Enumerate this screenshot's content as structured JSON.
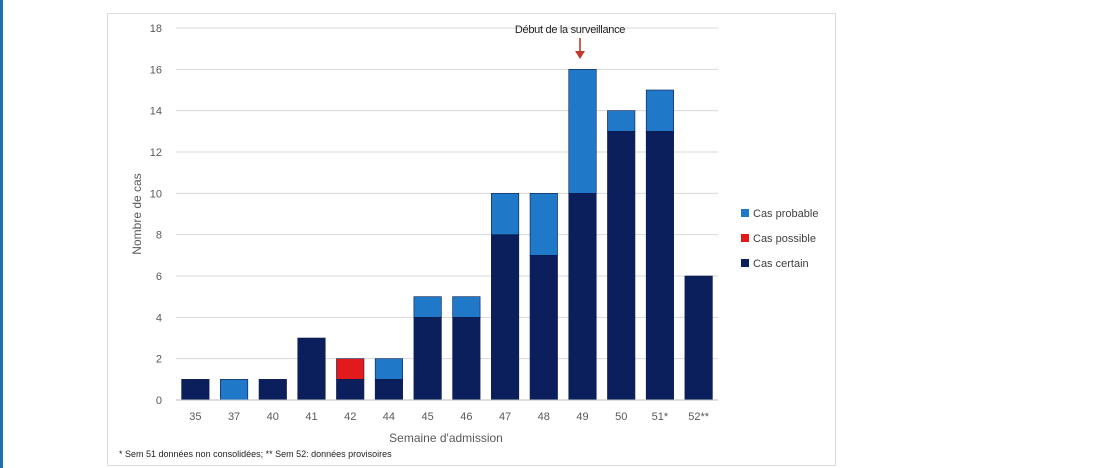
{
  "chart_data": {
    "type": "bar",
    "stacked": true,
    "categories": [
      "35",
      "37",
      "40",
      "41",
      "42",
      "44",
      "45",
      "46",
      "47",
      "48",
      "49",
      "50",
      "51*",
      "52**"
    ],
    "series": [
      {
        "name": "Cas certain",
        "color": "#0b1f5c",
        "values": [
          1,
          0,
          1,
          3,
          1,
          1,
          4,
          4,
          8,
          7,
          10,
          13,
          13,
          6
        ]
      },
      {
        "name": "Cas possible",
        "color": "#e31a1c",
        "values": [
          0,
          0,
          0,
          0,
          1,
          0,
          0,
          0,
          0,
          0,
          0,
          0,
          0,
          0
        ]
      },
      {
        "name": "Cas probable",
        "color": "#1f78c8",
        "values": [
          0,
          1,
          0,
          0,
          0,
          1,
          1,
          1,
          2,
          3,
          6,
          1,
          2,
          0
        ]
      }
    ],
    "legend_order": [
      "Cas probable",
      "Cas possible",
      "Cas certain"
    ],
    "xlabel": "Semaine d'admission",
    "ylabel": "Nombre de cas",
    "ylim": [
      0,
      18
    ],
    "yticks": [
      0,
      2,
      4,
      6,
      8,
      10,
      12,
      14,
      16,
      18
    ],
    "grid": true,
    "legend_position": "right",
    "annotation": {
      "text": "Début de la surveillance",
      "category": "49",
      "arrow_color": "#c0392b"
    },
    "footnote": "* Sem 51 données non consolidées; ** Sem 52: données provisoires"
  }
}
